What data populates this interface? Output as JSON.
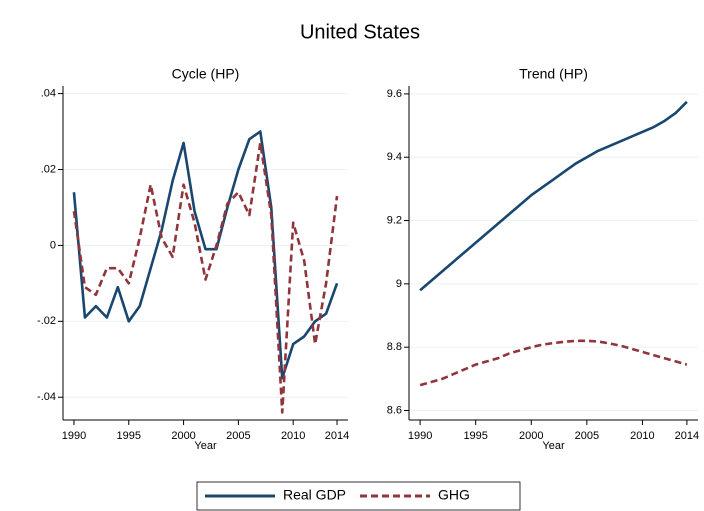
{
  "title": "United States",
  "chart_data": [
    {
      "type": "line",
      "title": "Cycle (HP)",
      "x_label": "Year",
      "x": [
        1990,
        1991,
        1992,
        1993,
        1994,
        1995,
        1996,
        1997,
        1998,
        1999,
        2000,
        2001,
        2002,
        2003,
        2004,
        2005,
        2006,
        2007,
        2008,
        2009,
        2010,
        2011,
        2012,
        2013,
        2014
      ],
      "series": [
        {
          "name": "Real GDP",
          "color": "#1a476f",
          "dash": false,
          "values": [
            0.014,
            -0.019,
            -0.016,
            -0.019,
            -0.011,
            -0.02,
            -0.016,
            -0.006,
            0.004,
            0.017,
            0.027,
            0.009,
            -0.001,
            -0.001,
            0.01,
            0.02,
            0.028,
            0.03,
            0.01,
            -0.035,
            -0.026,
            -0.024,
            -0.02,
            -0.018,
            -0.01
          ]
        },
        {
          "name": "GHG",
          "color": "#90353b",
          "dash": true,
          "values": [
            0.009,
            -0.011,
            -0.013,
            -0.006,
            -0.006,
            -0.01,
            0.002,
            0.016,
            0.002,
            -0.003,
            0.016,
            0.006,
            -0.009,
            0.0,
            0.011,
            0.014,
            0.008,
            0.027,
            0.008,
            -0.044,
            0.006,
            -0.004,
            -0.026,
            -0.01,
            0.013
          ]
        }
      ],
      "xlim": [
        1989,
        2015
      ],
      "xticks": [
        1990,
        1995,
        2000,
        2005,
        2010,
        2014
      ],
      "ylim": [
        -0.046,
        0.042
      ],
      "yticks": [
        {
          "value": -0.04,
          "label": "-.04"
        },
        {
          "value": -0.02,
          "label": "-.02"
        },
        0,
        {
          "value": 0.02,
          "label": ".02"
        },
        {
          "value": 0.04,
          "label": ".04"
        }
      ],
      "grid": true
    },
    {
      "type": "line",
      "title": "Trend (HP)",
      "x_label": "Year",
      "x": [
        1990,
        1991,
        1992,
        1993,
        1994,
        1995,
        1996,
        1997,
        1998,
        1999,
        2000,
        2001,
        2002,
        2003,
        2004,
        2005,
        2006,
        2007,
        2008,
        2009,
        2010,
        2011,
        2012,
        2013,
        2014
      ],
      "series": [
        {
          "color": "#1a476f",
          "dash": false,
          "values": [
            8.98,
            9.01,
            9.04,
            9.07,
            9.1,
            9.13,
            9.16,
            9.19,
            9.22,
            9.25,
            9.28,
            9.305,
            9.33,
            9.355,
            9.38,
            9.4,
            9.42,
            9.435,
            9.45,
            9.465,
            9.48,
            9.495,
            9.515,
            9.54,
            9.575
          ]
        },
        {
          "color": "#90353b",
          "dash": true,
          "values": [
            8.68,
            8.69,
            8.7,
            8.715,
            8.73,
            8.745,
            8.755,
            8.765,
            8.78,
            8.79,
            8.8,
            8.808,
            8.813,
            8.817,
            8.82,
            8.82,
            8.818,
            8.812,
            8.805,
            8.795,
            8.785,
            8.775,
            8.765,
            8.755,
            8.745
          ]
        }
      ],
      "xlim": [
        1989,
        2015
      ],
      "xticks": [
        1990,
        1995,
        2000,
        2005,
        2010,
        2014
      ],
      "ylim": [
        8.57,
        9.625
      ],
      "yticks": [
        8.6,
        8.8,
        9,
        9.2,
        9.4,
        9.6
      ],
      "grid": true
    }
  ]
}
